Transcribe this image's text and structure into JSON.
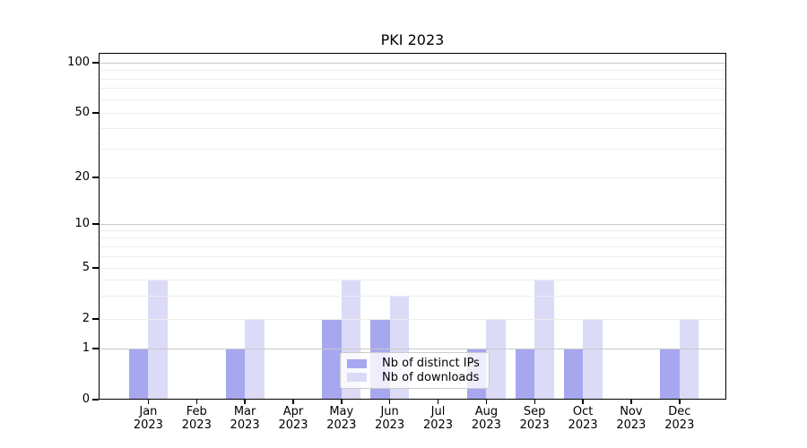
{
  "title": "PKI 2023",
  "chart_data": {
    "type": "bar",
    "title": "PKI 2023",
    "xlabel": "",
    "ylabel": "",
    "yscale": "symlog",
    "ylim": [
      0,
      100
    ],
    "grid": true,
    "legend_position": "lower center",
    "categories": [
      "Jan",
      "Feb",
      "Mar",
      "Apr",
      "May",
      "Jun",
      "Jul",
      "Aug",
      "Sep",
      "Oct",
      "Nov",
      "Dec"
    ],
    "category_year": "2023",
    "series": [
      {
        "name": "Nb of distinct IPs",
        "color": "#a7a7ef",
        "values": [
          1,
          0,
          1,
          0,
          2,
          2,
          0,
          1,
          1,
          1,
          0,
          1
        ]
      },
      {
        "name": "Nb of downloads",
        "color": "#dbdbf7",
        "values": [
          4,
          0,
          2,
          0,
          4,
          3,
          0,
          2,
          4,
          2,
          0,
          2
        ]
      }
    ],
    "yticks": [
      {
        "value": 100,
        "label": "100"
      },
      {
        "value": 50,
        "label": "50"
      },
      {
        "value": 20,
        "label": "20"
      },
      {
        "value": 10,
        "label": "10"
      },
      {
        "value": 5,
        "label": "5"
      },
      {
        "value": 2,
        "label": "2"
      },
      {
        "value": 1,
        "label": "1"
      },
      {
        "value": 0,
        "label": "0"
      }
    ]
  },
  "colors": {
    "grid_major": "#c9c9c9",
    "grid_minor": "#ededed",
    "spine": "#000000",
    "background": "#ffffff",
    "legend_border": "#cccccc"
  }
}
